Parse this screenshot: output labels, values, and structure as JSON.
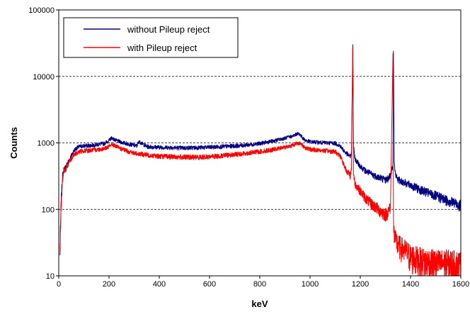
{
  "chart_data": {
    "type": "line",
    "title": "",
    "xlabel": "keV",
    "ylabel": "Counts",
    "xlim": [
      0,
      1600
    ],
    "ylim": [
      10,
      100000
    ],
    "y_scale": "log",
    "x_ticks": [
      0,
      200,
      400,
      600,
      800,
      1000,
      1200,
      1400,
      1600
    ],
    "x_tick_labels": [
      "0",
      "200",
      "400",
      "600",
      "800",
      "1000",
      "1200",
      "1400",
      "1600"
    ],
    "y_ticks": [
      10,
      100,
      1000,
      10000,
      100000
    ],
    "y_tick_labels": [
      "10",
      "100",
      "1000",
      "10000",
      "100000"
    ],
    "grid": "horizontal dashed at 100, 1000, 10000",
    "legend_position": "top-left",
    "series": [
      {
        "name": "without Pileup reject",
        "color": "#000080",
        "x": [
          5,
          10,
          15,
          20,
          30,
          40,
          50,
          60,
          70,
          80,
          90,
          100,
          120,
          150,
          180,
          200,
          210,
          220,
          230,
          250,
          280,
          310,
          320,
          350,
          400,
          450,
          500,
          550,
          600,
          650,
          700,
          750,
          800,
          850,
          900,
          930,
          950,
          960,
          970,
          980,
          1000,
          1050,
          1080,
          1100,
          1120,
          1140,
          1160,
          1165,
          1170,
          1173,
          1176,
          1180,
          1200,
          1220,
          1250,
          1280,
          1300,
          1310,
          1320,
          1330,
          1332,
          1335,
          1340,
          1350,
          1380,
          1400,
          1450,
          1500,
          1550,
          1600
        ],
        "y": [
          25,
          150,
          320,
          390,
          450,
          540,
          640,
          760,
          830,
          870,
          890,
          900,
          910,
          940,
          980,
          1080,
          1200,
          1130,
          1080,
          1020,
          960,
          900,
          1050,
          880,
          860,
          850,
          840,
          850,
          860,
          880,
          900,
          930,
          980,
          1060,
          1180,
          1260,
          1380,
          1340,
          1200,
          1100,
          1040,
          1010,
          1000,
          990,
          900,
          720,
          620,
          700,
          30000,
          900,
          700,
          560,
          450,
          380,
          330,
          300,
          280,
          290,
          330,
          450,
          24000,
          520,
          330,
          280,
          250,
          230,
          190,
          160,
          135,
          115
        ]
      },
      {
        "name": "with Pileup reject",
        "color": "#ff0000",
        "x": [
          5,
          10,
          15,
          20,
          30,
          40,
          50,
          60,
          70,
          80,
          90,
          100,
          120,
          150,
          180,
          200,
          210,
          220,
          230,
          250,
          280,
          300,
          350,
          400,
          450,
          500,
          550,
          600,
          650,
          700,
          750,
          800,
          850,
          900,
          930,
          950,
          960,
          970,
          980,
          1000,
          1050,
          1080,
          1100,
          1120,
          1140,
          1160,
          1165,
          1170,
          1173,
          1176,
          1180,
          1200,
          1220,
          1240,
          1260,
          1280,
          1300,
          1310,
          1320,
          1330,
          1332,
          1335,
          1340,
          1350,
          1380,
          1400,
          1450,
          1500,
          1550,
          1600
        ],
        "y": [
          25,
          120,
          280,
          360,
          420,
          510,
          580,
          650,
          700,
          730,
          750,
          760,
          770,
          790,
          820,
          880,
          960,
          920,
          880,
          810,
          740,
          700,
          660,
          630,
          620,
          610,
          610,
          620,
          640,
          670,
          700,
          740,
          790,
          860,
          920,
          1000,
          980,
          920,
          850,
          800,
          770,
          750,
          740,
          640,
          420,
          320,
          420,
          28000,
          360,
          280,
          240,
          190,
          150,
          125,
          110,
          95,
          85,
          90,
          110,
          22000,
          65,
          40,
          35,
          30,
          24,
          20,
          17,
          16,
          16,
          15
        ]
      }
    ]
  }
}
